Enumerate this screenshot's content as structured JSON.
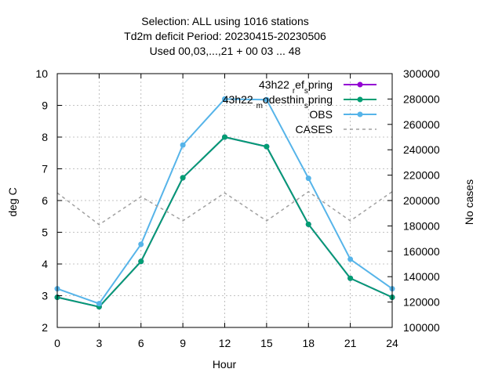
{
  "chart_data": {
    "type": "line",
    "title_lines": [
      "Selection: ALL using  1016 stations",
      "Td2m deficit   Period: 20230415-20230506",
      "Used  00,03,...,21  + 00 03 ... 48"
    ],
    "xlabel": "Hour",
    "ylabel": "deg C",
    "y2label": "No cases",
    "xlim": [
      0,
      24
    ],
    "ylim": [
      2,
      10
    ],
    "y2lim": [
      100000,
      300000
    ],
    "xticks": [
      0,
      3,
      6,
      9,
      12,
      15,
      18,
      21,
      24
    ],
    "yticks": [
      2,
      3,
      4,
      5,
      6,
      7,
      8,
      9,
      10
    ],
    "y2ticks": [
      100000,
      120000,
      140000,
      160000,
      180000,
      200000,
      220000,
      240000,
      260000,
      280000,
      300000
    ],
    "grid": true,
    "legend_position": "top-right",
    "x": [
      0,
      3,
      6,
      9,
      12,
      15,
      18,
      21,
      24
    ],
    "series": [
      {
        "name": "43h22 _r ef _s pring",
        "legend_parts": [
          "43h22 ",
          "r",
          "ef",
          "s",
          "pring"
        ],
        "color": "#9400d3",
        "axis": "y1",
        "style": "line-points",
        "values": [
          2.95,
          2.65,
          4.08,
          6.72,
          8.0,
          7.7,
          5.25,
          3.55,
          2.95
        ]
      },
      {
        "name": "43h22 _m odesthin _s pring",
        "legend_parts": [
          "43h22 ",
          "m",
          "odesthin",
          "s",
          "pring"
        ],
        "color": "#009e73",
        "axis": "y1",
        "style": "line-points",
        "values": [
          2.95,
          2.65,
          4.08,
          6.72,
          8.0,
          7.7,
          5.25,
          3.55,
          2.95
        ]
      },
      {
        "name": "OBS",
        "legend_parts": [
          "OBS"
        ],
        "color": "#56b4e9",
        "axis": "y1",
        "style": "line-points",
        "values": [
          3.22,
          2.75,
          4.62,
          7.75,
          9.2,
          9.18,
          6.7,
          4.15,
          3.22
        ]
      },
      {
        "name": "CASES",
        "legend_parts": [
          "CASES"
        ],
        "color": "#a0a0a0",
        "axis": "y2",
        "style": "dashed",
        "values": [
          206000,
          181000,
          203000,
          184000,
          206000,
          184000,
          207000,
          184000,
          207000
        ]
      }
    ]
  }
}
